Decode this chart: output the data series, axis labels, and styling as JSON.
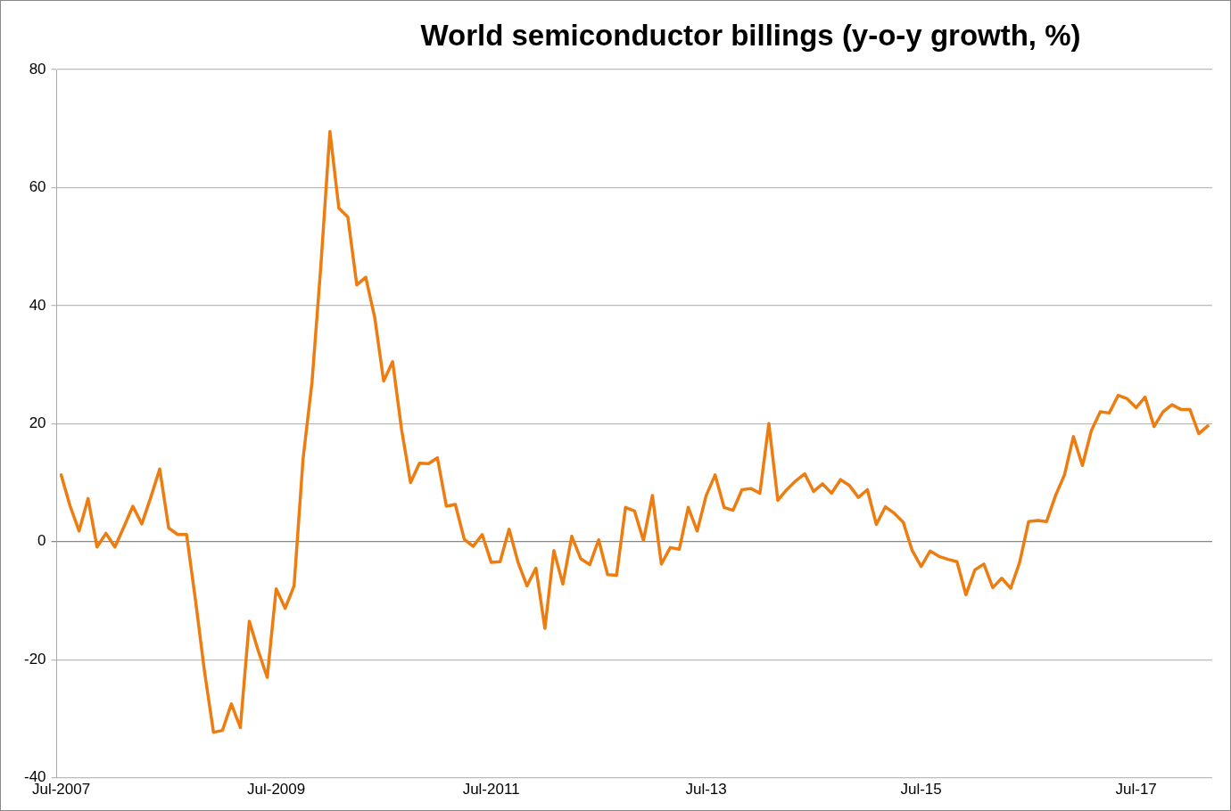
{
  "chart_data": {
    "type": "line",
    "title": "World semiconductor billings (y-o-y growth, %)",
    "categories": [
      "Jul-2007",
      null,
      null,
      null,
      null,
      null,
      null,
      null,
      null,
      null,
      null,
      null,
      null,
      null,
      null,
      null,
      null,
      null,
      null,
      null,
      null,
      null,
      null,
      null,
      "Jul-2009",
      null,
      null,
      null,
      null,
      null,
      null,
      null,
      null,
      null,
      null,
      null,
      null,
      null,
      null,
      null,
      null,
      null,
      null,
      null,
      null,
      null,
      null,
      null,
      "Jul-2011",
      null,
      null,
      null,
      null,
      null,
      null,
      null,
      null,
      null,
      null,
      null,
      null,
      null,
      null,
      null,
      null,
      null,
      null,
      null,
      null,
      null,
      null,
      null,
      "Jul-13",
      null,
      null,
      null,
      null,
      null,
      null,
      null,
      null,
      null,
      null,
      null,
      null,
      null,
      null,
      null,
      null,
      null,
      null,
      null,
      null,
      null,
      null,
      null,
      "Jul-15",
      null,
      null,
      null,
      null,
      null,
      null,
      null,
      null,
      null,
      null,
      null,
      null,
      null,
      null,
      null,
      null,
      null,
      null,
      null,
      null,
      null,
      null,
      null,
      "Jul-17",
      null,
      null,
      null,
      null,
      null,
      null,
      null,
      null
    ],
    "series": [
      {
        "color": "#ee7d11",
        "values": [
          11.3,
          6,
          1.8,
          7.3,
          -0.9,
          1.4,
          -0.9,
          2.5,
          6,
          3,
          7.5,
          12.3,
          2.3,
          1.2,
          1.2,
          -10,
          -22,
          -32.3,
          -32,
          -27.5,
          -31.5,
          -13.5,
          -18.5,
          -23,
          -8,
          -11.3,
          -7.5,
          14,
          27,
          47,
          69.5,
          56.5,
          55,
          43.5,
          44.8,
          38,
          27.2,
          30.5,
          19,
          10,
          13.3,
          13.2,
          14.2,
          6,
          6.3,
          0.4,
          -0.8,
          1.2,
          -3.5,
          -3.4,
          2.1,
          -3.5,
          -7.5,
          -4.5,
          -14.7,
          -1.5,
          -7.2,
          0.9,
          -2.9,
          -3.9,
          0.3,
          -5.6,
          -5.7,
          5.8,
          5.2,
          0.2,
          7.8,
          -3.8,
          -1,
          -1.3,
          5.8,
          1.8,
          7.8,
          11.3,
          5.8,
          5.3,
          8.8,
          9,
          8.2,
          20,
          7,
          8.8,
          10.3,
          11.5,
          8.5,
          9.8,
          8.2,
          10.5,
          9.5,
          7.5,
          8.8,
          2.9,
          5.9,
          4.8,
          3.3,
          -1.5,
          -4.2,
          -1.6,
          -2.5,
          -3,
          -3.4,
          -9,
          -4.8,
          -3.8,
          -7.8,
          -6.2,
          -7.9,
          -3.5,
          3.4,
          3.6,
          3.4,
          7.8,
          11.3,
          17.8,
          12.9,
          18.8,
          22,
          21.8,
          24.8,
          24.2,
          22.7,
          24.5,
          19.5,
          22,
          23.2,
          22.4,
          22.4,
          18.3,
          19.6
        ]
      }
    ],
    "ylim": [
      -40,
      80
    ],
    "yticks": [
      -40,
      -20,
      0,
      20,
      40,
      60,
      80
    ],
    "grid": "y",
    "legend": false,
    "marker": "none",
    "line_style": "solid"
  }
}
